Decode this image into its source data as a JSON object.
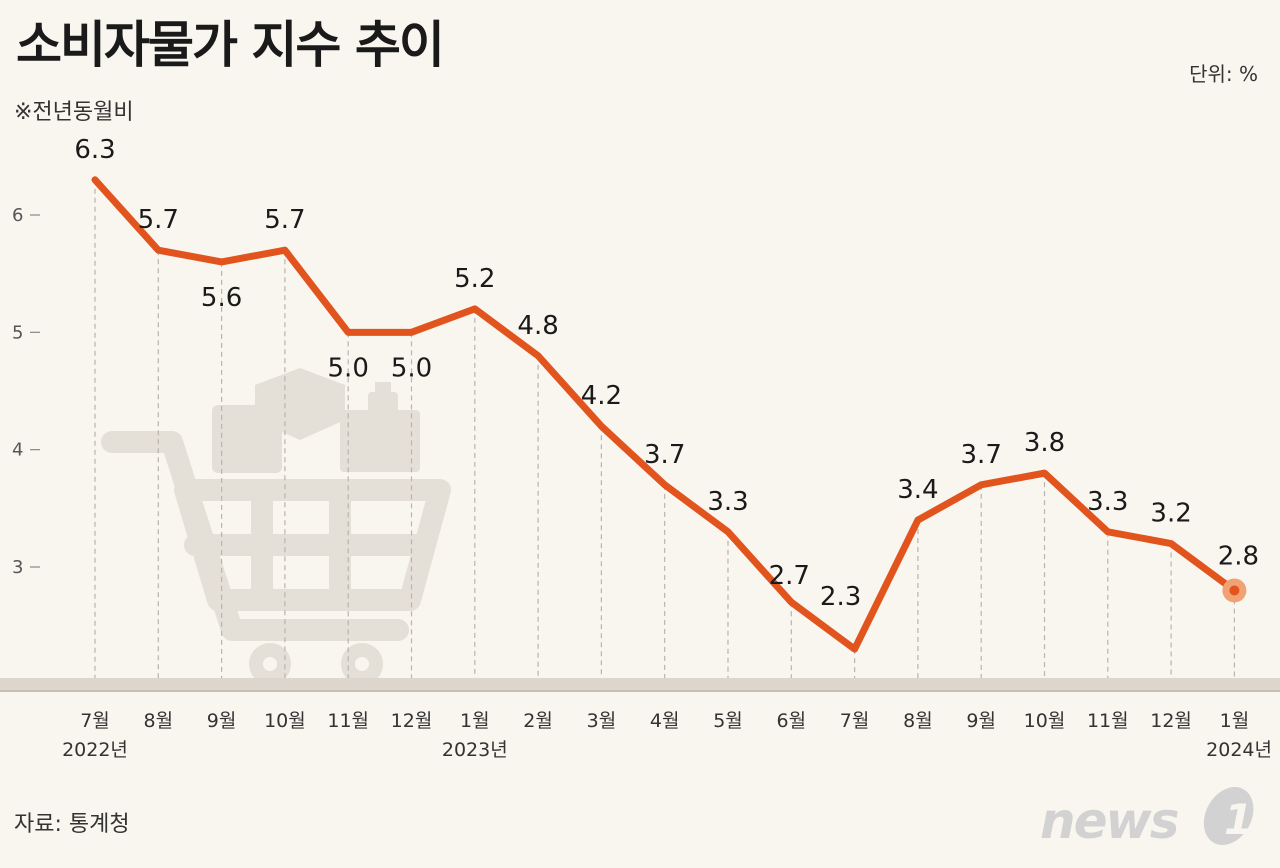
{
  "header": {
    "title": "소비자물가 지수 추이",
    "subtitle": "※전년동월비",
    "unit": "단위: %"
  },
  "footer": {
    "source": "자료: 통계청",
    "logo_text": "news"
  },
  "colors": {
    "line": "#e2541e",
    "background": "#f9f6ef",
    "marker_end": "#f0a275",
    "cart": "#e4dfd7"
  },
  "chart_data": {
    "type": "line",
    "title": "소비자물가 지수 추이",
    "subtitle": "※전년동월비",
    "unit": "%",
    "categories": [
      "7월",
      "8월",
      "9월",
      "10월",
      "11월",
      "12월",
      "1월",
      "2월",
      "3월",
      "4월",
      "5월",
      "6월",
      "7월",
      "8월",
      "9월",
      "10월",
      "11월",
      "12월",
      "1월"
    ],
    "year_labels": [
      {
        "index": 0,
        "label": "2022년"
      },
      {
        "index": 6,
        "label": "2023년"
      },
      {
        "index": 18,
        "label": "2024년"
      }
    ],
    "values": [
      6.3,
      5.7,
      5.6,
      5.7,
      5.0,
      5.0,
      5.2,
      4.8,
      4.2,
      3.7,
      3.3,
      2.7,
      2.3,
      3.4,
      3.7,
      3.8,
      3.3,
      3.2,
      2.8
    ],
    "value_labels": [
      "6.3",
      "5.7",
      "5.6",
      "5.7",
      "5.0",
      "5.0",
      "5.2",
      "4.8",
      "4.2",
      "3.7",
      "3.3",
      "2.7",
      "2.3",
      "3.4",
      "3.7",
      "3.8",
      "3.3",
      "3.2",
      "2.8"
    ],
    "yticks": [
      3,
      4,
      5,
      6
    ],
    "ylim": [
      2,
      6.6
    ],
    "grid": "vertical dashed at each month",
    "legend": "none",
    "xlabel": "",
    "ylabel": ""
  }
}
